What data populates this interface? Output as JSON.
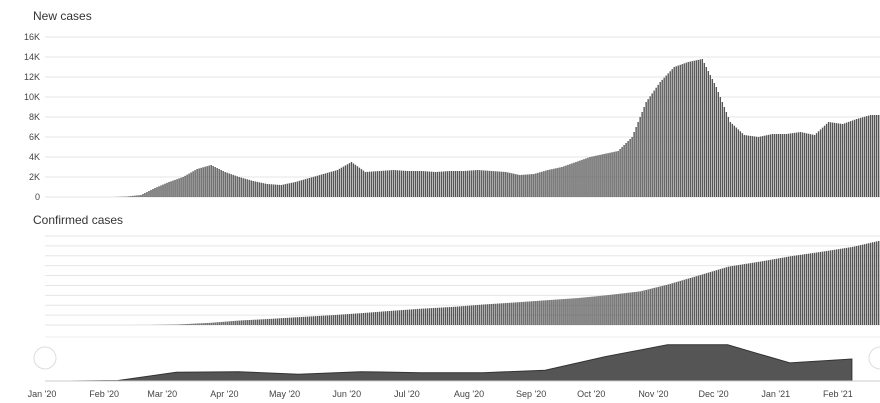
{
  "chart_data": [
    {
      "type": "bar",
      "title": "New cases",
      "y_ticks": [
        "16K",
        "14K",
        "12K",
        "10K",
        "8K",
        "6K",
        "4K",
        "2K",
        "0"
      ],
      "ylim": [
        0,
        16000
      ],
      "grid": true,
      "x": [
        "2020-01-22",
        "2020-01-29",
        "2020-02-05",
        "2020-02-12",
        "2020-02-19",
        "2020-02-26",
        "2020-03-04",
        "2020-03-11",
        "2020-03-18",
        "2020-03-25",
        "2020-04-01",
        "2020-04-08",
        "2020-04-15",
        "2020-04-22",
        "2020-04-29",
        "2020-05-06",
        "2020-05-13",
        "2020-05-20",
        "2020-05-27",
        "2020-06-03",
        "2020-06-10",
        "2020-06-17",
        "2020-06-24",
        "2020-07-01",
        "2020-07-08",
        "2020-07-15",
        "2020-07-22",
        "2020-07-29",
        "2020-08-05",
        "2020-08-12",
        "2020-08-19",
        "2020-08-26",
        "2020-09-02",
        "2020-09-09",
        "2020-09-16",
        "2020-09-23",
        "2020-09-30",
        "2020-10-07",
        "2020-10-14",
        "2020-10-21",
        "2020-10-28",
        "2020-11-04",
        "2020-11-11",
        "2020-11-18",
        "2020-11-25",
        "2020-12-02",
        "2020-12-09",
        "2020-12-16",
        "2020-12-23",
        "2020-12-30",
        "2021-01-06",
        "2021-01-13",
        "2021-01-20",
        "2021-01-27",
        "2021-02-03",
        "2021-02-10",
        "2021-02-17",
        "2021-02-24"
      ],
      "values": [
        0,
        0,
        0,
        0,
        50,
        200,
        900,
        1500,
        2000,
        2800,
        3200,
        2500,
        2000,
        1600,
        1300,
        1200,
        1500,
        1900,
        2300,
        2700,
        3500,
        2500,
        2600,
        2700,
        2600,
        2600,
        2500,
        2600,
        2600,
        2700,
        2600,
        2500,
        2200,
        2300,
        2700,
        3000,
        3500,
        4000,
        4300,
        4600,
        6000,
        9500,
        11500,
        13000,
        13500,
        13800,
        11000,
        7500,
        6200,
        6000,
        6300,
        6300,
        6500,
        6200,
        7500,
        7300,
        7800,
        8200
      ]
    },
    {
      "type": "area",
      "title": "Confirmed cases",
      "grid": true,
      "x": [
        "2020-01-22",
        "2020-02-15",
        "2020-03-01",
        "2020-03-15",
        "2020-04-01",
        "2020-04-15",
        "2020-05-01",
        "2020-05-15",
        "2020-06-01",
        "2020-06-15",
        "2020-07-01",
        "2020-07-15",
        "2020-08-01",
        "2020-08-15",
        "2020-09-01",
        "2020-09-15",
        "2020-10-01",
        "2020-10-15",
        "2020-11-01",
        "2020-11-15",
        "2020-12-01",
        "2020-12-15",
        "2021-01-01",
        "2021-01-15",
        "2021-02-01",
        "2021-02-15",
        "2021-02-28"
      ],
      "values": [
        0,
        0,
        1000,
        10000,
        45000,
        90000,
        125000,
        160000,
        200000,
        240000,
        290000,
        330000,
        370000,
        415000,
        460000,
        500000,
        545000,
        600000,
        680000,
        820000,
        1010000,
        1180000,
        1290000,
        1390000,
        1490000,
        1580000,
        1700000
      ],
      "ylim": [
        0,
        1800000
      ]
    },
    {
      "type": "area",
      "title": "",
      "x_ticks": [
        "Jan '20",
        "Feb '20",
        "Mar '20",
        "Apr '20",
        "May '20",
        "Jun '20",
        "Jul '20",
        "Aug '20",
        "Sep '20",
        "Oct '20",
        "Nov '20",
        "Dec '20",
        "Jan '21",
        "Feb '21"
      ],
      "x": [
        "2020-01-22",
        "2020-02-15",
        "2020-03-15",
        "2020-04-15",
        "2020-05-15",
        "2020-06-15",
        "2020-07-15",
        "2020-08-15",
        "2020-09-15",
        "2020-10-15",
        "2020-11-15",
        "2020-12-15",
        "2021-01-15",
        "2021-02-15"
      ],
      "values": [
        0,
        100,
        1800,
        1900,
        1400,
        1900,
        1700,
        1700,
        2200,
        5000,
        7400,
        7400,
        3700,
        4500
      ],
      "ylim": [
        0,
        9000
      ]
    }
  ]
}
